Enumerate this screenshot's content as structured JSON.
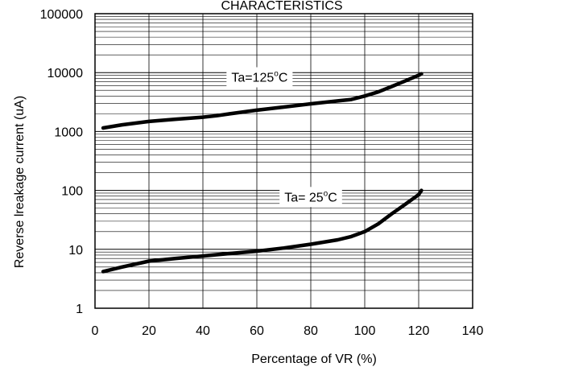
{
  "chart_data": {
    "type": "line",
    "title": "CHARACTERISTICS",
    "xlabel": "Percentage of VR (%)",
    "ylabel": "Reverse lreakage current (uA)",
    "xlim": [
      0,
      140
    ],
    "ylim": [
      1,
      100000
    ],
    "yscale": "log",
    "grid": true,
    "x_ticks": [
      0,
      20,
      40,
      60,
      80,
      100,
      120,
      140
    ],
    "y_ticks": [
      1,
      10,
      100,
      1000,
      10000,
      100000
    ],
    "y_tick_labels": [
      "1",
      "10",
      "100",
      "1000",
      "10000",
      "100000"
    ],
    "series": [
      {
        "label": {
          "prefix": "Ta=125",
          "sup": "o",
          "suffix": "C"
        },
        "x": [
          3,
          10,
          20,
          30,
          40,
          45,
          50,
          60,
          70,
          80,
          90,
          95,
          100,
          105,
          110,
          115,
          120,
          121
        ],
        "y": [
          1150,
          1300,
          1480,
          1620,
          1750,
          1850,
          2000,
          2300,
          2600,
          2950,
          3300,
          3500,
          4000,
          4700,
          5800,
          7200,
          9000,
          9500
        ]
      },
      {
        "label": {
          "prefix": "Ta= 25",
          "sup": "o",
          "suffix": "C"
        },
        "x": [
          3,
          10,
          20,
          30,
          40,
          45,
          50,
          60,
          70,
          80,
          90,
          95,
          100,
          105,
          110,
          115,
          120,
          121
        ],
        "y": [
          4.2,
          5.0,
          6.3,
          7.0,
          7.7,
          8.1,
          8.5,
          9.3,
          10.5,
          12.2,
          14.5,
          16.5,
          20,
          27,
          40,
          58,
          85,
          100
        ]
      }
    ]
  }
}
